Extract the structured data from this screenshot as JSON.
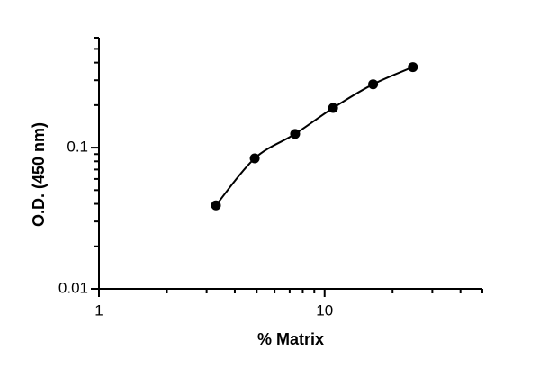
{
  "chart_data": {
    "type": "scatter",
    "x_label": "% Matrix",
    "y_label": "O.D. (450 nm)",
    "xscale": "log",
    "yscale": "log",
    "xlim": [
      1,
      50
    ],
    "ylim": [
      0.01,
      0.6
    ],
    "xticks": [
      1,
      10
    ],
    "yticks": [
      0.01,
      0.1
    ],
    "series": [
      {
        "color": "#000000",
        "x": [
          3.3,
          4.9,
          7.4,
          10.9,
          16.4,
          24.6
        ],
        "values": [
          0.039,
          0.084,
          0.125,
          0.191,
          0.281,
          0.372
        ]
      }
    ]
  }
}
